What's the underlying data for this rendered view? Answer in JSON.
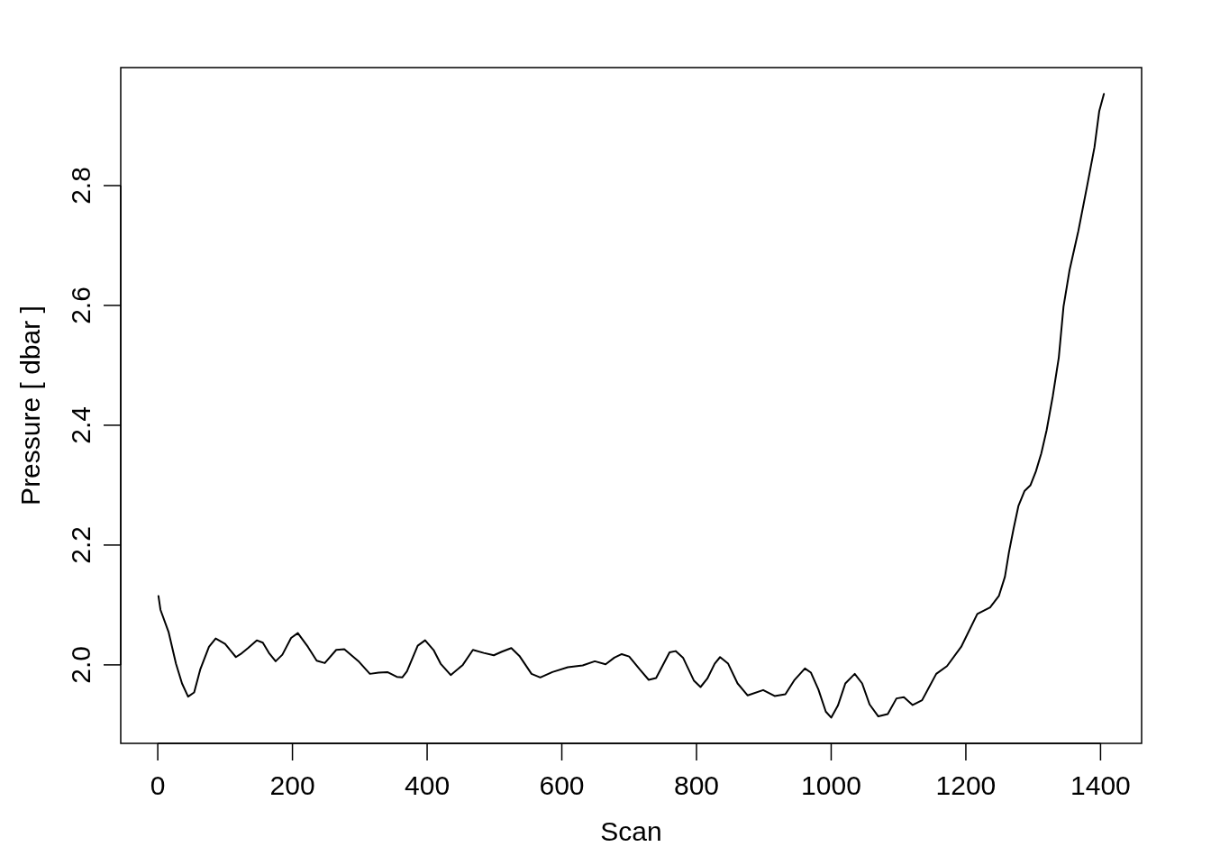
{
  "chart_data": {
    "type": "line",
    "xlabel": "Scan",
    "ylabel": "Pressure [ dbar ]",
    "color": "#000000",
    "x": [
      1,
      4,
      16,
      27,
      36,
      45,
      54,
      63,
      76,
      86,
      100,
      116,
      123,
      134,
      147,
      156,
      165,
      175,
      185,
      198,
      208,
      223,
      236,
      248,
      265,
      277,
      299,
      315,
      328,
      341,
      355,
      363,
      370,
      386,
      397,
      410,
      420,
      435,
      453,
      468,
      484,
      499,
      511,
      525,
      537,
      555,
      568,
      586,
      609,
      631,
      649,
      665,
      678,
      689,
      700,
      716,
      729,
      740,
      760,
      769,
      780,
      796,
      806,
      816,
      827,
      835,
      847,
      861,
      876,
      899,
      916,
      932,
      945,
      961,
      970,
      981,
      992,
      1000,
      1010,
      1021,
      1035,
      1046,
      1057,
      1070,
      1084,
      1097,
      1108,
      1121,
      1135,
      1156,
      1172,
      1193,
      1217,
      1236,
      1249,
      1258,
      1264,
      1271,
      1278,
      1287,
      1296,
      1304,
      1312,
      1320,
      1329,
      1338,
      1345,
      1354,
      1367,
      1380,
      1391,
      1398,
      1405
    ],
    "values": [
      2.115,
      2.092,
      2.055,
      2.002,
      1.969,
      1.947,
      1.954,
      1.992,
      2.03,
      2.044,
      2.035,
      2.013,
      2.018,
      2.028,
      2.041,
      2.037,
      2.02,
      2.006,
      2.017,
      2.045,
      2.053,
      2.03,
      2.007,
      2.003,
      2.025,
      2.026,
      2.005,
      1.985,
      1.987,
      1.988,
      1.98,
      1.979,
      1.989,
      2.032,
      2.041,
      2.024,
      2.002,
      1.983,
      2.0,
      2.025,
      2.02,
      2.016,
      2.022,
      2.028,
      2.015,
      1.985,
      1.979,
      1.988,
      1.996,
      1.999,
      2.006,
      2.001,
      2.012,
      2.018,
      2.014,
      1.992,
      1.975,
      1.978,
      2.021,
      2.023,
      2.012,
      1.974,
      1.963,
      1.977,
      2.002,
      2.013,
      2.002,
      1.969,
      1.949,
      1.958,
      1.948,
      1.951,
      1.974,
      1.994,
      1.987,
      1.959,
      1.922,
      1.912,
      1.932,
      1.969,
      1.985,
      1.969,
      1.934,
      1.914,
      1.918,
      1.944,
      1.946,
      1.933,
      1.941,
      1.985,
      1.998,
      2.03,
      2.085,
      2.096,
      2.115,
      2.147,
      2.188,
      2.228,
      2.265,
      2.29,
      2.3,
      2.323,
      2.353,
      2.392,
      2.448,
      2.513,
      2.598,
      2.659,
      2.724,
      2.799,
      2.864,
      2.924,
      2.953
    ],
    "xlim": [
      -55,
      1461
    ],
    "ylim": [
      1.869,
      2.997
    ],
    "xticks": [
      0,
      200,
      400,
      600,
      800,
      1000,
      1200,
      1400
    ],
    "yticks": [
      {
        "value": 2,
        "label": "2.0"
      },
      2.2,
      2.4,
      2.6,
      2.8
    ]
  }
}
